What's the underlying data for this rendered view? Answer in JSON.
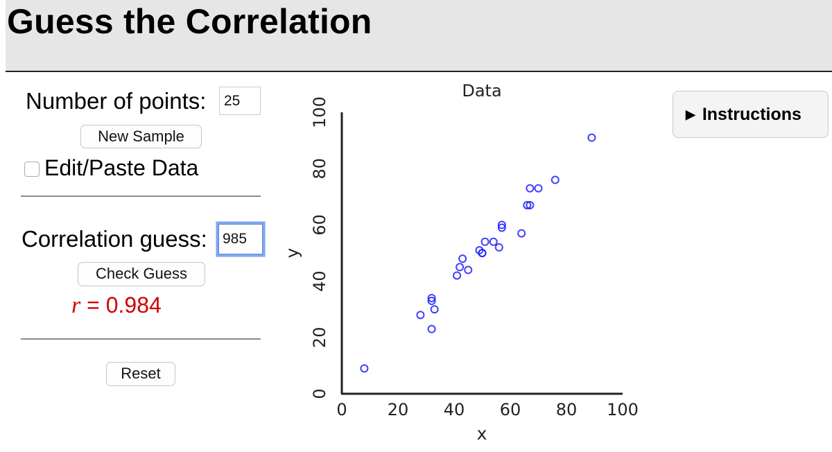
{
  "app": {
    "title": "Guess the Correlation"
  },
  "controls": {
    "num_points_label": "Number of points:",
    "num_points_value": "25",
    "new_sample_label": "New Sample",
    "edit_paste_label": "Edit/Paste Data",
    "edit_paste_checked": false,
    "guess_label": "Correlation guess:",
    "guess_value": "985",
    "check_guess_label": "Check Guess",
    "result_symbol": "r",
    "result_text": " = 0.984",
    "reset_label": "Reset"
  },
  "instructions": {
    "icon": "triangle-right-icon",
    "label": "Instructions"
  },
  "chart_data": {
    "type": "scatter",
    "title": "Data",
    "xlabel": "x",
    "ylabel": "y",
    "xlim": [
      0,
      100
    ],
    "ylim": [
      0,
      100
    ],
    "xticks": [
      "0",
      "20",
      "40",
      "60",
      "80",
      "100"
    ],
    "yticks": [
      "0",
      "20",
      "40",
      "60",
      "80",
      "100"
    ],
    "grid": false,
    "marker_color": "#1f1fff",
    "points": [
      {
        "x": 8,
        "y": 9
      },
      {
        "x": 28,
        "y": 28
      },
      {
        "x": 32,
        "y": 23
      },
      {
        "x": 32,
        "y": 34
      },
      {
        "x": 32,
        "y": 33
      },
      {
        "x": 33,
        "y": 30
      },
      {
        "x": 41,
        "y": 42
      },
      {
        "x": 42,
        "y": 45
      },
      {
        "x": 43,
        "y": 48
      },
      {
        "x": 45,
        "y": 44
      },
      {
        "x": 49,
        "y": 51
      },
      {
        "x": 50,
        "y": 50
      },
      {
        "x": 50,
        "y": 50
      },
      {
        "x": 51,
        "y": 54
      },
      {
        "x": 54,
        "y": 54
      },
      {
        "x": 56,
        "y": 52
      },
      {
        "x": 57,
        "y": 60
      },
      {
        "x": 57,
        "y": 59
      },
      {
        "x": 64,
        "y": 57
      },
      {
        "x": 66,
        "y": 67
      },
      {
        "x": 67,
        "y": 67
      },
      {
        "x": 67,
        "y": 73
      },
      {
        "x": 70,
        "y": 73
      },
      {
        "x": 76,
        "y": 76
      },
      {
        "x": 89,
        "y": 91
      }
    ]
  }
}
